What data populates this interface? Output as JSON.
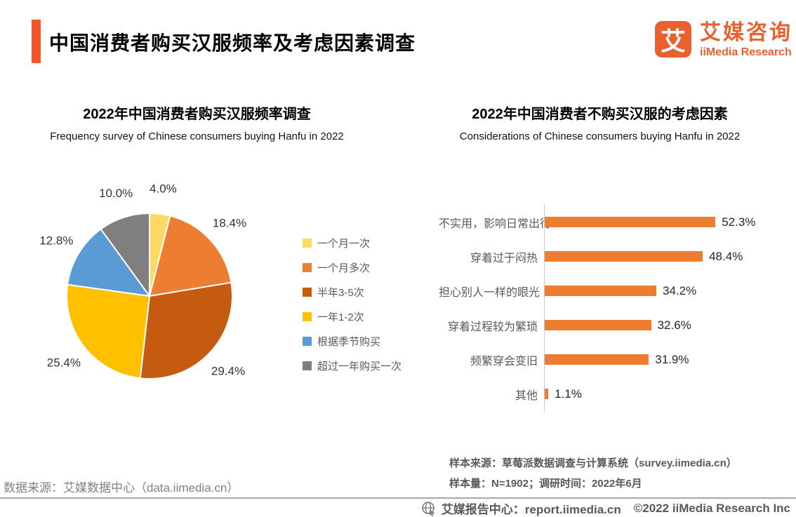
{
  "header": {
    "title": "中国消费者购买汉服频率及考虑因素调查",
    "accent_color": "#F0562A",
    "logo": {
      "glyph": "艾",
      "name_cn": "艾媒咨询",
      "name_en": "iiMedia Research",
      "color": "#E8612F"
    }
  },
  "chart_data": [
    {
      "type": "pie",
      "title": "2022年中国消费者购买汉服频率调查",
      "subtitle": "Frequency survey of Chinese consumers buying Hanfu in 2022",
      "categories": [
        "一个月一次",
        "一个月多次",
        "半年3-5次",
        "一年1-2次",
        "根据季节购买",
        "超过一年购买一次"
      ],
      "values": [
        4.0,
        18.4,
        29.4,
        25.4,
        12.8,
        10.0
      ],
      "labels": [
        "4.0%",
        "18.4%",
        "29.4%",
        "25.4%",
        "12.8%",
        "10.0%"
      ],
      "colors": [
        "#FFD966",
        "#ED7D31",
        "#C55A11",
        "#FFC000",
        "#5B9BD5",
        "#7F7F7F"
      ],
      "start_angle_deg": 0,
      "direction": "clockwise",
      "legend_position": "right"
    },
    {
      "type": "bar",
      "orientation": "horizontal",
      "title": "2022年中国消费者不购买汉服的考虑因素",
      "subtitle": "Considerations of Chinese consumers buying Hanfu in 2022",
      "categories": [
        "不实用，影响日常出行",
        "穿着过于闷热",
        "担心别人一样的眼光",
        "穿着过程较为繁琐",
        "频繁穿会变旧",
        "其他"
      ],
      "values": [
        52.3,
        48.4,
        34.2,
        32.6,
        31.9,
        1.1
      ],
      "labels": [
        "52.3%",
        "48.4%",
        "34.2%",
        "32.6%",
        "31.9%",
        "1.1%"
      ],
      "bar_color": "#ED7D31",
      "xlim": [
        0,
        56
      ],
      "grid": false
    }
  ],
  "notes": {
    "sample_source": "样本来源：草莓派数据调查与计算系统（survey.iimedia.cn）",
    "sample_size": "样本量：N=1902；调研时间：2022年6月",
    "data_source": "数据来源：艾媒数据中心（data.iimedia.cn）"
  },
  "footer": {
    "report_center": "艾媒报告中心：report.iimedia.cn",
    "copyright": "©2022  iiMedia Research  Inc"
  }
}
